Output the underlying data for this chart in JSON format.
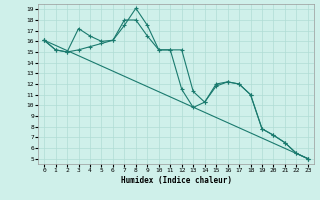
{
  "xlabel": "Humidex (Indice chaleur)",
  "bg_color": "#cff0ea",
  "grid_color": "#b0ddd5",
  "line_color": "#1a7a6e",
  "ylim": [
    4.5,
    19.5
  ],
  "xlim": [
    -0.5,
    23.5
  ],
  "yticks": [
    5,
    6,
    7,
    8,
    9,
    10,
    11,
    12,
    13,
    14,
    15,
    16,
    17,
    18,
    19
  ],
  "xticks": [
    0,
    1,
    2,
    3,
    4,
    5,
    6,
    7,
    8,
    9,
    10,
    11,
    12,
    13,
    14,
    15,
    16,
    17,
    18,
    19,
    20,
    21,
    22,
    23
  ],
  "series": [
    {
      "x": [
        0,
        1,
        2,
        3,
        4,
        5,
        6,
        7,
        8,
        9,
        10,
        11,
        12,
        13,
        14,
        15,
        16,
        17,
        18,
        19,
        20,
        21,
        22,
        23
      ],
      "y": [
        16.1,
        15.2,
        15.0,
        17.2,
        16.5,
        16.0,
        16.1,
        17.5,
        19.1,
        17.5,
        15.2,
        15.2,
        11.5,
        9.8,
        10.3,
        12.0,
        12.2,
        12.0,
        11.0,
        7.8,
        7.2,
        6.5,
        5.5,
        5.0
      ]
    },
    {
      "x": [
        0,
        1,
        2,
        3,
        4,
        5,
        6,
        7,
        8,
        9,
        10,
        11,
        12,
        13,
        14,
        15,
        16,
        17,
        18,
        19,
        20,
        21,
        22,
        23
      ],
      "y": [
        16.1,
        15.2,
        15.0,
        15.2,
        15.5,
        15.8,
        16.1,
        18.0,
        18.0,
        16.5,
        15.2,
        15.2,
        15.2,
        11.3,
        10.3,
        11.8,
        12.2,
        12.0,
        11.0,
        7.8,
        7.2,
        6.5,
        5.5,
        5.0
      ]
    },
    {
      "x": [
        0,
        23
      ],
      "y": [
        16.1,
        5.0
      ]
    }
  ]
}
